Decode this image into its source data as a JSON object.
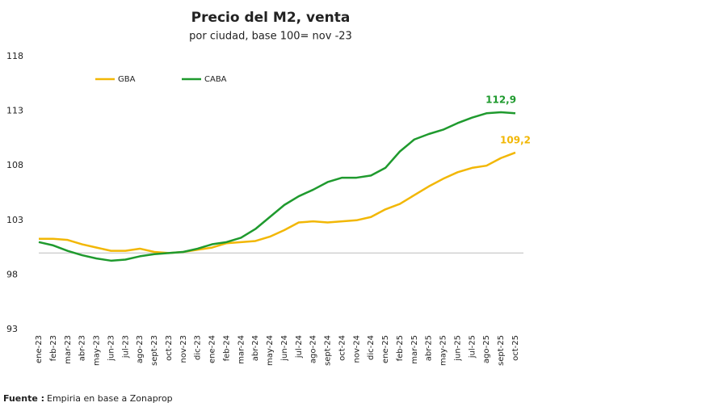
{
  "chart_data": {
    "type": "line",
    "title": "Precio del M2, venta",
    "subtitle": "por ciudad, base 100= nov -23",
    "source_label": "Fuente :",
    "source": "Empiria en base a Zonaprop",
    "categories": [
      "ene-23",
      "feb-23",
      "mar-23",
      "abr-23",
      "may-23",
      "jun-23",
      "jul-23",
      "ago-23",
      "sept-23",
      "oct-23",
      "nov-23",
      "dic-23",
      "ene-24",
      "feb-24",
      "mar-24",
      "abr-24",
      "may-24",
      "jun-24",
      "jul-24",
      "ago-24",
      "sept-24",
      "oct-24",
      "nov-24",
      "dic-24",
      "ene-25",
      "feb-25",
      "mar-25",
      "abr-25",
      "may-25",
      "jun-25",
      "jul-25",
      "ago-25",
      "sept-25",
      "oct-25"
    ],
    "series": [
      {
        "name": "GBA",
        "color": "#f2b705",
        "values": [
          101.3,
          101.3,
          101.2,
          100.8,
          100.5,
          100.2,
          100.2,
          100.4,
          100.1,
          100.0,
          100.1,
          100.3,
          100.5,
          100.9,
          101.0,
          101.1,
          101.5,
          102.1,
          102.8,
          102.9,
          102.8,
          102.9,
          103.0,
          103.3,
          104.0,
          104.5,
          105.3,
          106.1,
          106.8,
          107.4,
          107.8,
          108.0,
          108.7,
          109.2
        ],
        "value_labels": [
          null,
          null,
          null,
          null,
          null,
          null,
          null,
          null,
          null,
          null,
          null,
          null,
          null,
          null,
          null,
          null,
          null,
          null,
          null,
          null,
          null,
          null,
          null,
          null,
          null,
          null,
          null,
          null,
          null,
          null,
          null,
          null,
          null,
          "109,2"
        ]
      },
      {
        "name": "CABA",
        "color": "#1f9a2e",
        "values": [
          101.0,
          100.7,
          100.2,
          99.8,
          99.5,
          99.3,
          99.4,
          99.7,
          99.9,
          100.0,
          100.1,
          100.4,
          100.8,
          101.0,
          101.4,
          102.2,
          103.3,
          104.4,
          105.2,
          105.8,
          106.5,
          106.9,
          106.9,
          107.1,
          107.8,
          109.3,
          110.4,
          110.9,
          111.3,
          111.9,
          112.4,
          112.8,
          112.9,
          112.8
        ],
        "value_labels": [
          null,
          null,
          null,
          null,
          null,
          null,
          null,
          null,
          null,
          null,
          null,
          null,
          null,
          null,
          null,
          null,
          null,
          null,
          null,
          null,
          null,
          null,
          null,
          null,
          null,
          null,
          null,
          null,
          null,
          null,
          null,
          null,
          "112,9",
          null
        ]
      }
    ],
    "ylim": [
      93,
      118
    ],
    "yticks": [
      93,
      98,
      103,
      108,
      113,
      118
    ],
    "hline": 100,
    "hline_color": "#d0d0d0",
    "legend": "top-left"
  }
}
